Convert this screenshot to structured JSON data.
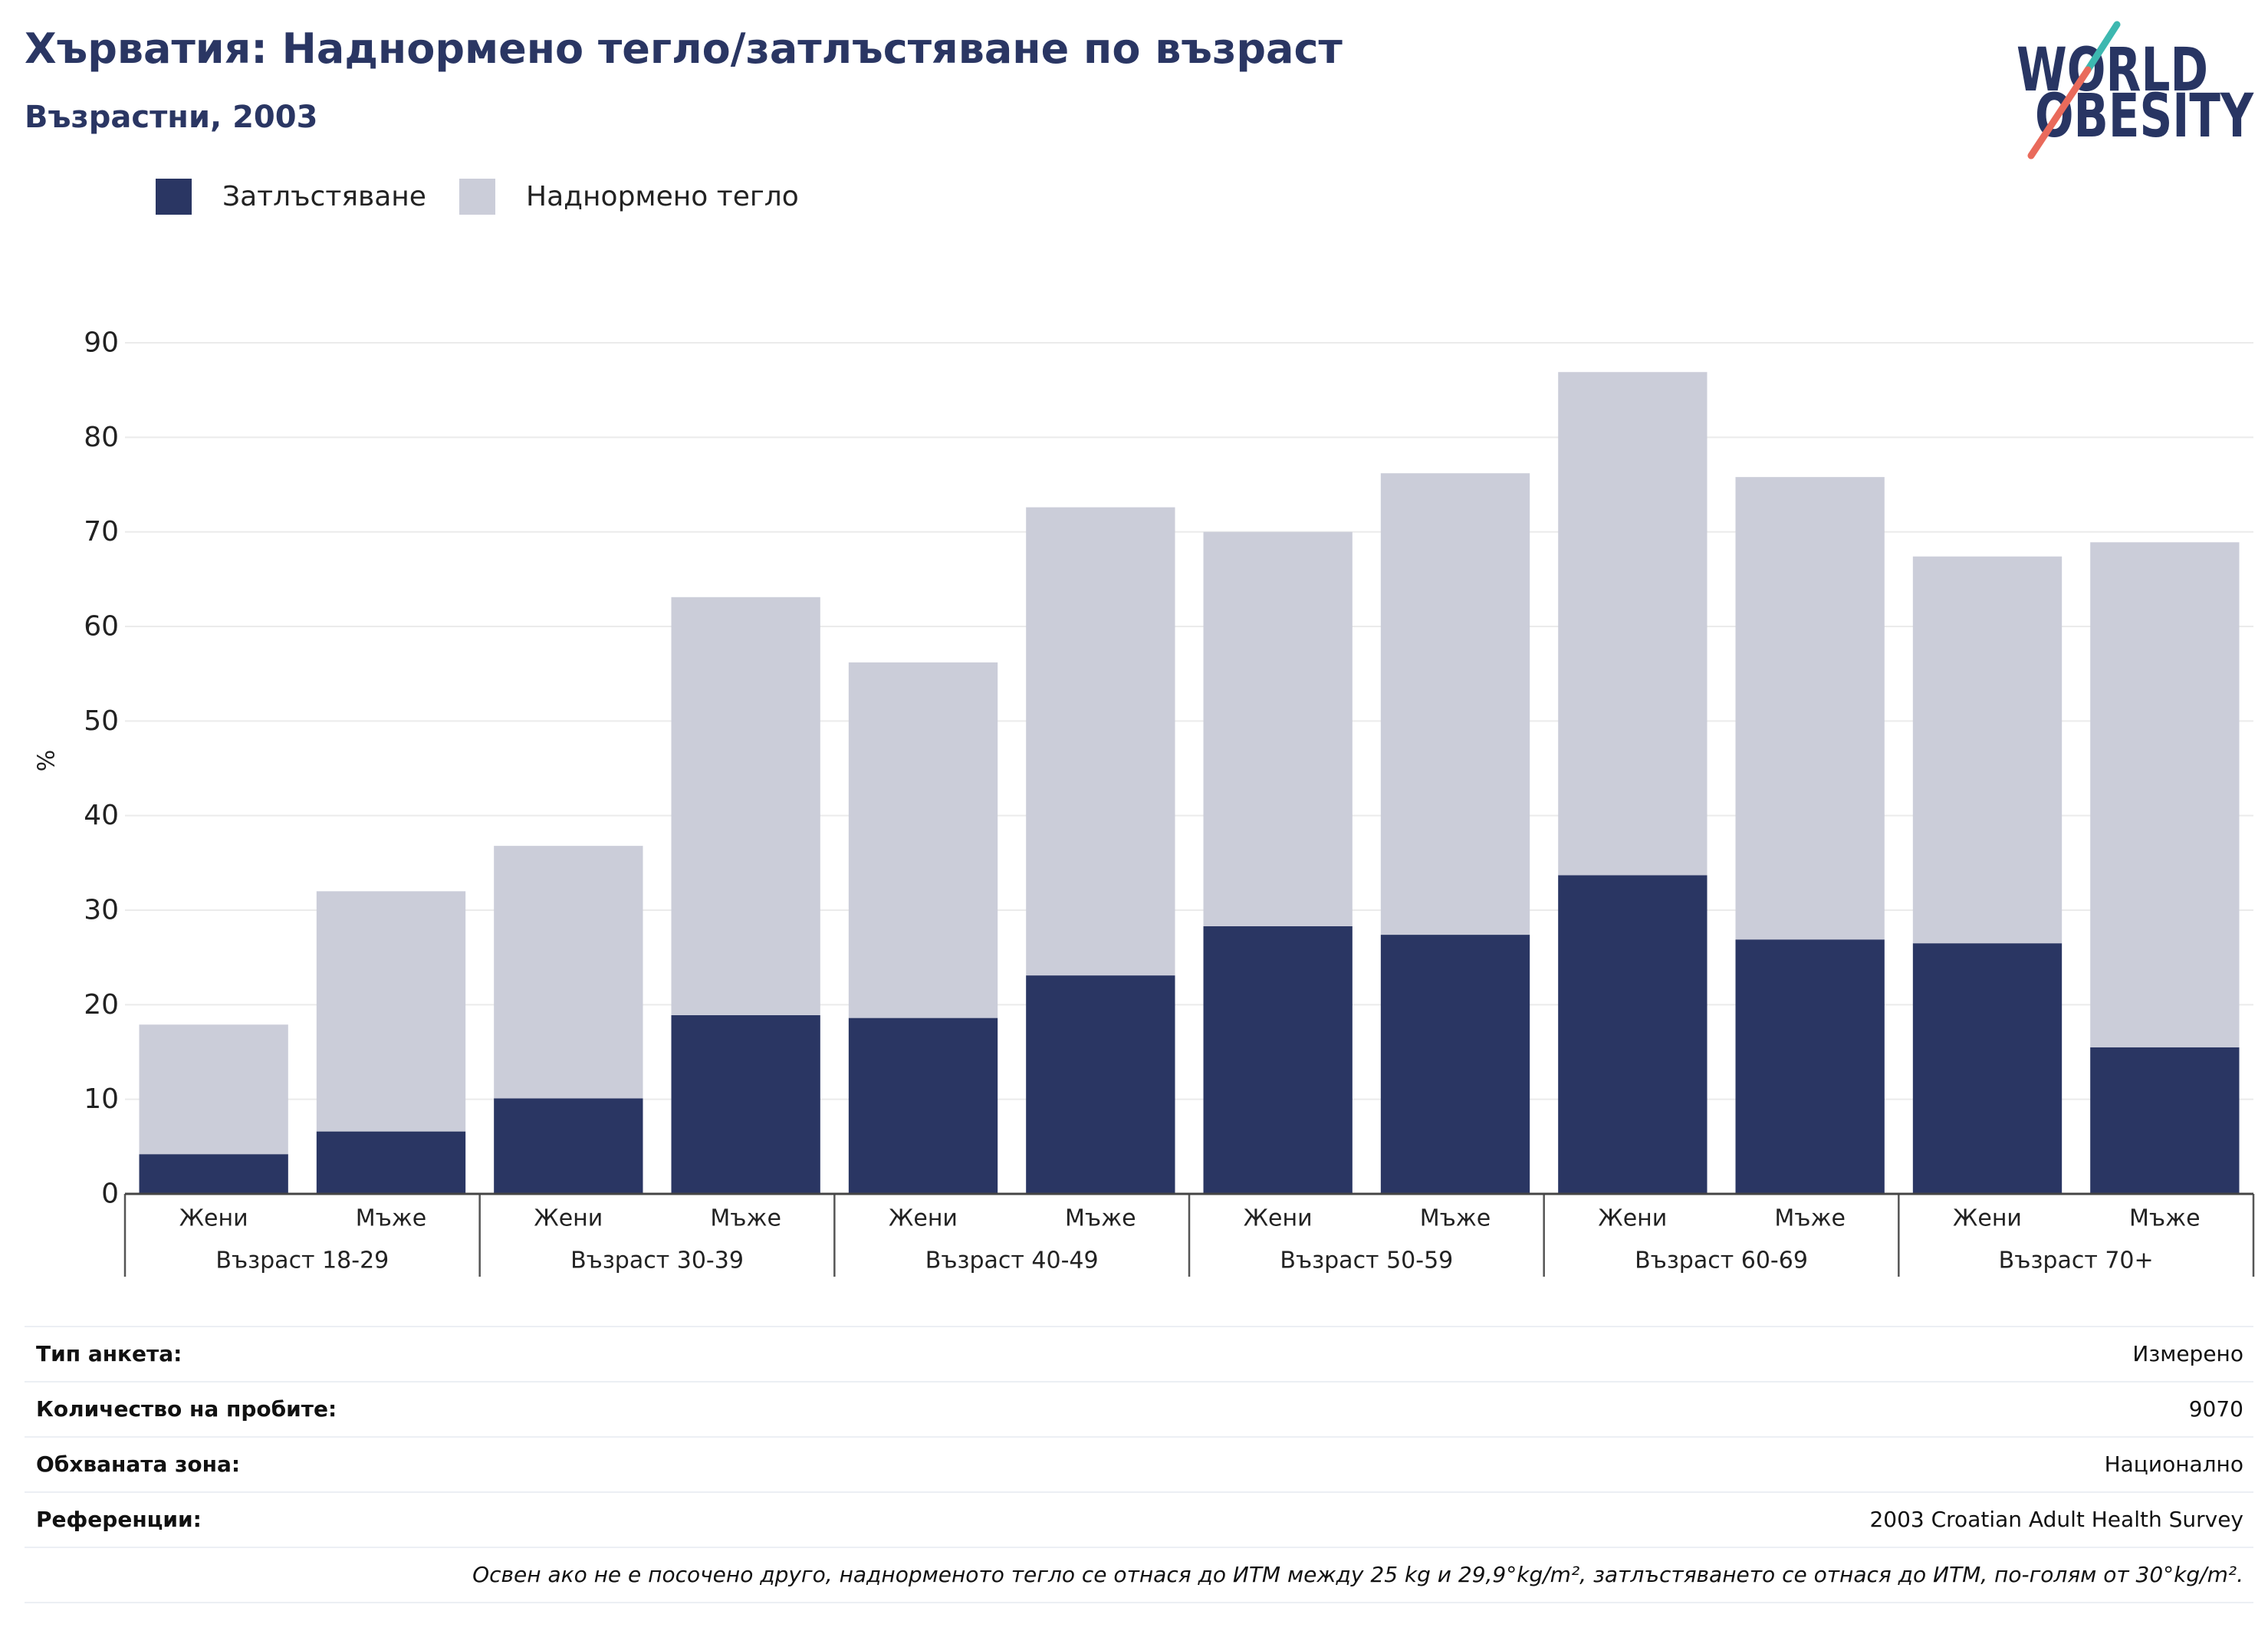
{
  "chart_data": {
    "type": "bar",
    "stacked": true,
    "title": "Хърватия: Наднормено тегло/затлъстяване по възраст",
    "subtitle": "Възрастни, 2003",
    "ylabel": "%",
    "ylim": [
      0,
      90
    ],
    "yticks": [
      0,
      10,
      20,
      30,
      40,
      50,
      60,
      70,
      80,
      90
    ],
    "grid": true,
    "legend": "top-left",
    "groups": [
      {
        "label": "Възраст 18-29",
        "categories": [
          "Жени",
          "Мъже"
        ]
      },
      {
        "label": "Възраст 30-39",
        "categories": [
          "Жени",
          "Мъже"
        ]
      },
      {
        "label": "Възраст 40-49",
        "categories": [
          "Жени",
          "Мъже"
        ]
      },
      {
        "label": "Възраст 50-59",
        "categories": [
          "Жени",
          "Мъже"
        ]
      },
      {
        "label": "Възраст 60-69",
        "categories": [
          "Жени",
          "Мъже"
        ]
      },
      {
        "label": "Възраст 70+",
        "categories": [
          "Жени",
          "Мъже"
        ]
      }
    ],
    "series": [
      {
        "name": "Затлъстяване",
        "color": "#2a3663",
        "values": [
          4.2,
          6.6,
          10.1,
          18.9,
          18.6,
          23.1,
          28.3,
          27.4,
          33.7,
          26.9,
          26.5,
          15.5
        ]
      },
      {
        "name": "Наднормено тегло",
        "color": "#cbcdd9",
        "values": [
          13.7,
          25.4,
          26.7,
          44.2,
          37.6,
          49.5,
          41.7,
          48.8,
          53.2,
          48.9,
          40.9,
          53.4
        ]
      }
    ]
  },
  "logo": {
    "line1": "WORLD",
    "line2": "OBESITY",
    "colors": {
      "text": "#283563",
      "accent_top": "#3db8b0",
      "accent_bottom": "#e96a5b"
    }
  },
  "survey_info": [
    {
      "label": "Тип анкета:",
      "value": "Измерено"
    },
    {
      "label": "Количество на пробите:",
      "value": "9070"
    },
    {
      "label": "Обхваната зона:",
      "value": "Национално"
    },
    {
      "label": "Референции:",
      "value": "2003 Croatian Adult Health Survey"
    }
  ],
  "footnote": "Освен ако не е посочено друго, наднорменото тегло се отнася до ИТМ между 25 kg и 29,9°kg/m², затлъстяването се отнася до ИТМ, по-голям от 30°kg/m²."
}
